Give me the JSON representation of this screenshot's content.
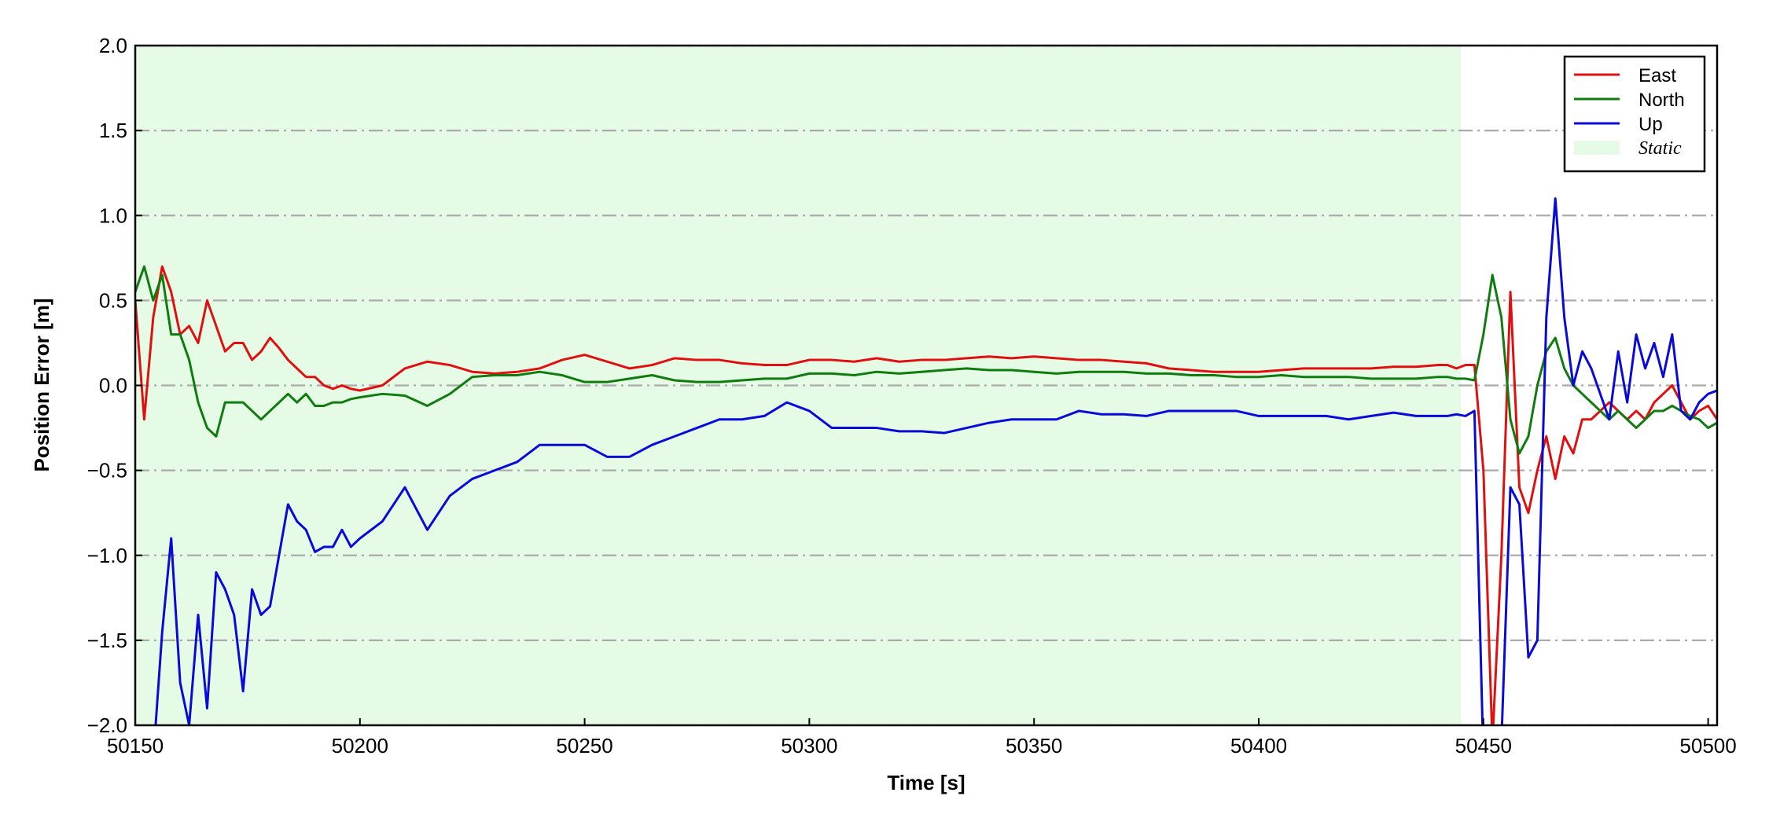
{
  "chart_data": {
    "type": "line",
    "xlabel": "Time [s]",
    "ylabel": "Position Error [m]",
    "x": [
      50150,
      50152,
      50154,
      50156,
      50158,
      50160,
      50162,
      50164,
      50166,
      50168,
      50170,
      50172,
      50174,
      50176,
      50178,
      50180,
      50182,
      50184,
      50186,
      50188,
      50190,
      50192,
      50194,
      50196,
      50198,
      50200,
      50205,
      50210,
      50215,
      50220,
      50225,
      50230,
      50235,
      50240,
      50245,
      50250,
      50255,
      50260,
      50265,
      50270,
      50275,
      50280,
      50285,
      50290,
      50295,
      50300,
      50305,
      50310,
      50315,
      50320,
      50325,
      50330,
      50335,
      50340,
      50345,
      50350,
      50355,
      50360,
      50365,
      50370,
      50375,
      50380,
      50385,
      50390,
      50395,
      50400,
      50405,
      50410,
      50415,
      50420,
      50425,
      50430,
      50435,
      50440,
      50442,
      50444,
      50446,
      50448,
      50450,
      50452,
      50454,
      50456,
      50458,
      50460,
      50462,
      50464,
      50466,
      50468,
      50470,
      50472,
      50474,
      50476,
      50478,
      50480,
      50482,
      50484,
      50486,
      50488,
      50490,
      50492,
      50494,
      50496,
      50498,
      50500,
      50502
    ],
    "series": [
      {
        "name": "East",
        "color": "#e01010",
        "values": [
          0.5,
          -0.2,
          0.4,
          0.7,
          0.55,
          0.3,
          0.35,
          0.25,
          0.5,
          0.35,
          0.2,
          0.25,
          0.25,
          0.15,
          0.2,
          0.28,
          0.22,
          0.15,
          0.1,
          0.05,
          0.05,
          0.0,
          -0.02,
          0.0,
          -0.02,
          -0.03,
          0.0,
          0.1,
          0.14,
          0.12,
          0.08,
          0.07,
          0.08,
          0.1,
          0.15,
          0.18,
          0.14,
          0.1,
          0.12,
          0.16,
          0.15,
          0.15,
          0.13,
          0.12,
          0.12,
          0.15,
          0.15,
          0.14,
          0.16,
          0.14,
          0.15,
          0.15,
          0.16,
          0.17,
          0.16,
          0.17,
          0.16,
          0.15,
          0.15,
          0.14,
          0.13,
          0.1,
          0.09,
          0.08,
          0.08,
          0.08,
          0.09,
          0.1,
          0.1,
          0.1,
          0.1,
          0.11,
          0.11,
          0.12,
          0.12,
          0.1,
          0.12,
          0.12,
          -0.5,
          -2.1,
          -1.0,
          0.55,
          -0.6,
          -0.75,
          -0.5,
          -0.3,
          -0.55,
          -0.3,
          -0.4,
          -0.2,
          -0.2,
          -0.15,
          -0.1,
          -0.15,
          -0.2,
          -0.15,
          -0.2,
          -0.1,
          -0.05,
          0.0,
          -0.1,
          -0.2,
          -0.15,
          -0.12,
          -0.2
        ]
      },
      {
        "name": "North",
        "color": "#107c10",
        "values": [
          0.55,
          0.7,
          0.5,
          0.65,
          0.3,
          0.3,
          0.15,
          -0.1,
          -0.25,
          -0.3,
          -0.1,
          -0.1,
          -0.1,
          -0.15,
          -0.2,
          -0.15,
          -0.1,
          -0.05,
          -0.1,
          -0.05,
          -0.12,
          -0.12,
          -0.1,
          -0.1,
          -0.08,
          -0.07,
          -0.05,
          -0.06,
          -0.12,
          -0.05,
          0.05,
          0.06,
          0.06,
          0.08,
          0.06,
          0.02,
          0.02,
          0.04,
          0.06,
          0.03,
          0.02,
          0.02,
          0.03,
          0.04,
          0.04,
          0.07,
          0.07,
          0.06,
          0.08,
          0.07,
          0.08,
          0.09,
          0.1,
          0.09,
          0.09,
          0.08,
          0.07,
          0.08,
          0.08,
          0.08,
          0.07,
          0.07,
          0.06,
          0.06,
          0.05,
          0.05,
          0.06,
          0.05,
          0.05,
          0.05,
          0.04,
          0.04,
          0.04,
          0.05,
          0.05,
          0.04,
          0.04,
          0.03,
          0.3,
          0.65,
          0.4,
          -0.2,
          -0.4,
          -0.3,
          0.0,
          0.2,
          0.28,
          0.1,
          0.0,
          -0.05,
          -0.1,
          -0.15,
          -0.2,
          -0.15,
          -0.2,
          -0.25,
          -0.2,
          -0.15,
          -0.15,
          -0.12,
          -0.15,
          -0.18,
          -0.2,
          -0.25,
          -0.22
        ]
      },
      {
        "name": "Up",
        "color": "#0a0ad8",
        "values": [
          -2.1,
          -2.3,
          -2.2,
          -1.45,
          -0.9,
          -1.75,
          -2.0,
          -1.35,
          -1.9,
          -1.1,
          -1.2,
          -1.35,
          -1.8,
          -1.2,
          -1.35,
          -1.3,
          -1.0,
          -0.7,
          -0.8,
          -0.85,
          -0.98,
          -0.95,
          -0.95,
          -0.85,
          -0.95,
          -0.9,
          -0.8,
          -0.6,
          -0.85,
          -0.65,
          -0.55,
          -0.5,
          -0.45,
          -0.35,
          -0.35,
          -0.35,
          -0.42,
          -0.42,
          -0.35,
          -0.3,
          -0.25,
          -0.2,
          -0.2,
          -0.18,
          -0.1,
          -0.15,
          -0.25,
          -0.25,
          -0.25,
          -0.27,
          -0.27,
          -0.28,
          -0.25,
          -0.22,
          -0.2,
          -0.2,
          -0.2,
          -0.15,
          -0.17,
          -0.17,
          -0.18,
          -0.15,
          -0.15,
          -0.15,
          -0.15,
          -0.18,
          -0.18,
          -0.18,
          -0.18,
          -0.2,
          -0.18,
          -0.16,
          -0.18,
          -0.18,
          -0.18,
          -0.17,
          -0.18,
          -0.15,
          -2.2,
          -2.2,
          -2.1,
          -0.6,
          -0.7,
          -1.6,
          -1.5,
          0.4,
          1.1,
          0.4,
          0.0,
          0.2,
          0.1,
          -0.05,
          -0.2,
          0.2,
          -0.1,
          0.3,
          0.1,
          0.25,
          0.05,
          0.3,
          -0.15,
          -0.2,
          -0.1,
          -0.05,
          -0.03
        ]
      }
    ],
    "static_span": [
      50150,
      50445
    ],
    "static_label": "Static",
    "static_color": "#e6fbe6",
    "xlim": [
      50150,
      50502
    ],
    "xticks": [
      50150,
      50200,
      50250,
      50300,
      50350,
      50400,
      50450,
      50500
    ],
    "ylim": [
      -2,
      2
    ],
    "yticks": [
      {
        "value": -2,
        "label": "−2.0"
      },
      {
        "value": -1.5,
        "label": "−1.5"
      },
      {
        "value": -1,
        "label": "−1.0"
      },
      {
        "value": -0.5,
        "label": "−0.5"
      },
      {
        "value": 0,
        "label": "0.0"
      },
      {
        "value": 0.5,
        "label": "0.5"
      },
      {
        "value": 1,
        "label": "1.0"
      },
      {
        "value": 1.5,
        "label": "1.5"
      },
      {
        "value": 2,
        "label": "2.0"
      }
    ],
    "grid": true,
    "legend": "upper right"
  }
}
